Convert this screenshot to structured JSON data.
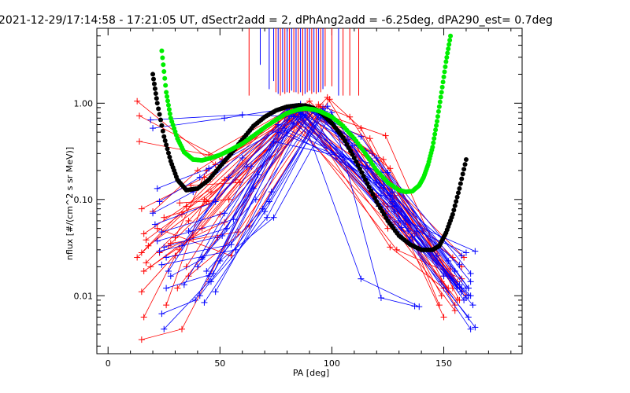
{
  "chart_data": {
    "type": "line",
    "title": "2021-12-29/17:14:58 - 17:21:05 UT, dSectr2add = 2, dPhAng2add = -6.25deg, dPA290_est=   0.7deg",
    "xlabel": "PA [deg]",
    "ylabel": "nflux [#/(cm^2 s sr MeV)]",
    "xlim": [
      -5,
      185
    ],
    "ylim": [
      0.0025,
      6.0
    ],
    "y_scale": "log",
    "x_ticks": [
      0,
      50,
      100,
      150
    ],
    "x_tick_labels": [
      "0",
      "50",
      "100",
      "150"
    ],
    "y_ticks": [
      0.01,
      0.1,
      1.0
    ],
    "y_tick_labels": [
      "0.01",
      "0.10",
      "1.00"
    ],
    "grid": false,
    "marker_lines": {
      "description_free": true,
      "colors": [
        "#ff0000",
        "#0000ff"
      ],
      "x_positions": [
        63,
        68,
        72,
        74,
        75,
        76,
        77,
        78,
        79,
        80,
        81,
        82,
        83,
        84,
        85,
        86,
        87,
        88,
        89,
        90,
        91,
        92,
        93,
        94,
        95,
        96,
        97,
        100,
        103,
        105,
        108,
        112
      ],
      "y_tops": [
        6.0,
        6.0,
        6.0,
        6.0,
        6.0,
        6.0,
        6.0,
        6.0,
        6.0,
        6.0,
        6.0,
        6.0,
        6.0,
        6.0,
        6.0,
        6.0,
        6.0,
        6.0,
        6.0,
        6.0,
        6.0,
        6.0,
        6.0,
        6.0,
        6.0,
        6.0,
        6.0,
        6.0,
        6.0,
        6.0,
        6.0,
        6.0
      ],
      "y_bottoms": [
        1.2,
        2.5,
        1.4,
        1.7,
        1.3,
        1.25,
        1.2,
        1.3,
        1.25,
        1.3,
        1.28,
        1.35,
        1.3,
        1.3,
        1.25,
        1.3,
        1.2,
        1.25,
        1.3,
        1.35,
        1.25,
        1.3,
        1.25,
        1.3,
        1.3,
        1.4,
        1.5,
        1.5,
        1.2,
        1.2,
        1.2,
        1.2
      ],
      "line_colors": [
        "#ff0000",
        "#0000ff",
        "#0000ff",
        "#0000ff",
        "#ff0000",
        "#0000ff",
        "#ff0000",
        "#0000ff",
        "#ff0000",
        "#0000ff",
        "#ff0000",
        "#0000ff",
        "#ff0000",
        "#0000ff",
        "#ff0000",
        "#0000ff",
        "#ff0000",
        "#0000ff",
        "#ff0000",
        "#0000ff",
        "#ff0000",
        "#0000ff",
        "#ff0000",
        "#0000ff",
        "#ff0000",
        "#0000ff",
        "#ff0000",
        "#ff0000",
        "#0000ff",
        "#ff0000",
        "#ff0000",
        "#ff0000"
      ]
    },
    "series": [
      {
        "color": "#ff0000",
        "x": [
          13,
          48,
          85,
          123,
          152
        ],
        "y": [
          1.05,
          0.23,
          0.88,
          0.09,
          0.012
        ]
      },
      {
        "color": "#ff0000",
        "x": [
          14,
          51,
          86,
          126,
          156
        ],
        "y": [
          0.74,
          0.26,
          0.81,
          0.065,
          0.009
        ]
      },
      {
        "color": "#ff0000",
        "x": [
          14,
          45,
          83,
          118,
          158
        ],
        "y": [
          0.4,
          0.29,
          0.92,
          0.25,
          0.011
        ]
      },
      {
        "color": "#ff0000",
        "x": [
          15,
          43,
          88,
          121,
          150
        ],
        "y": [
          0.08,
          0.17,
          0.82,
          0.18,
          0.016
        ]
      },
      {
        "color": "#ff0000",
        "x": [
          16,
          52,
          87,
          112,
          155
        ],
        "y": [
          0.044,
          0.16,
          0.86,
          0.37,
          0.008
        ]
      },
      {
        "color": "#ff0000",
        "x": [
          17,
          46,
          82,
          124,
          153
        ],
        "y": [
          0.038,
          0.12,
          0.78,
          0.075,
          0.016
        ]
      },
      {
        "color": "#ff0000",
        "x": [
          18,
          44,
          84,
          128,
          149
        ],
        "y": [
          0.033,
          0.095,
          0.8,
          0.058,
          0.014
        ]
      },
      {
        "color": "#ff0000",
        "x": [
          15,
          35,
          80,
          115,
          158
        ],
        "y": [
          0.028,
          0.085,
          0.9,
          0.22,
          0.02
        ]
      },
      {
        "color": "#ff0000",
        "x": [
          13,
          33,
          79,
          110,
          153
        ],
        "y": [
          0.025,
          0.07,
          0.72,
          0.28,
          0.015
        ]
      },
      {
        "color": "#ff0000",
        "x": [
          17,
          36,
          82,
          125,
          153
        ],
        "y": [
          0.022,
          0.06,
          0.87,
          0.085,
          0.019
        ]
      },
      {
        "color": "#ff0000",
        "x": [
          19,
          42,
          88,
          118,
          156
        ],
        "y": [
          0.02,
          0.05,
          0.94,
          0.3,
          0.014
        ]
      },
      {
        "color": "#ff0000",
        "x": [
          16,
          38,
          81,
          129,
          155
        ],
        "y": [
          0.018,
          0.04,
          0.67,
          0.046,
          0.007
        ]
      },
      {
        "color": "#ff0000",
        "x": [
          15,
          32,
          86,
          126,
          150
        ],
        "y": [
          0.011,
          0.03,
          0.87,
          0.032,
          0.012
        ]
      },
      {
        "color": "#ff0000",
        "x": [
          16,
          30,
          80,
          129,
          158
        ],
        "y": [
          0.006,
          0.026,
          0.85,
          0.03,
          0.015
        ]
      },
      {
        "color": "#ff0000",
        "x": [
          15,
          33,
          83,
          120,
          154
        ],
        "y": [
          0.0035,
          0.0045,
          0.8,
          0.11,
          0.025
        ]
      },
      {
        "color": "#ff0000",
        "x": [
          20,
          40,
          86,
          123,
          151
        ],
        "y": [
          0.075,
          0.2,
          0.95,
          0.26,
          0.018
        ]
      },
      {
        "color": "#ff0000",
        "x": [
          22,
          55,
          88,
          124,
          154
        ],
        "y": [
          0.05,
          0.026,
          0.9,
          0.46,
          0.012
        ]
      },
      {
        "color": "#ff0000",
        "x": [
          27,
          57,
          92,
          126,
          157
        ],
        "y": [
          0.033,
          0.16,
          0.86,
          0.21,
          0.009
        ]
      },
      {
        "color": "#ff0000",
        "x": [
          23,
          52,
          90,
          117,
          152
        ],
        "y": [
          0.028,
          0.058,
          0.73,
          0.43,
          0.011
        ]
      },
      {
        "color": "#ff0000",
        "x": [
          30,
          44,
          90,
          107,
          159
        ],
        "y": [
          0.04,
          0.2,
          1.05,
          0.42,
          0.025
        ]
      },
      {
        "color": "#ff0000",
        "x": [
          32,
          54,
          93,
          128,
          160
        ],
        "y": [
          0.092,
          0.1,
          0.88,
          0.11,
          0.01
        ]
      },
      {
        "color": "#ff0000",
        "x": [
          37,
          59,
          96,
          131,
          148
        ],
        "y": [
          0.14,
          0.15,
          0.75,
          0.075,
          0.008
        ]
      },
      {
        "color": "#ff0000",
        "x": [
          35,
          50,
          98,
          127,
          150
        ],
        "y": [
          0.02,
          0.07,
          1.15,
          0.085,
          0.006
        ]
      },
      {
        "color": "#ff0000",
        "x": [
          31,
          49,
          94,
          123,
          149
        ],
        "y": [
          0.012,
          0.04,
          0.97,
          0.14,
          0.01
        ]
      },
      {
        "color": "#ff0000",
        "x": [
          26,
          43,
          95,
          134,
          148
        ],
        "y": [
          0.008,
          0.1,
          0.92,
          0.055,
          0.022
        ]
      },
      {
        "color": "#ff0000",
        "x": [
          25,
          45,
          91,
          102,
          125
        ],
        "y": [
          0.065,
          0.09,
          0.88,
          0.27,
          0.05
        ]
      },
      {
        "color": "#ff0000",
        "x": [
          28,
          58,
          96,
          108,
          141
        ],
        "y": [
          0.035,
          0.046,
          0.92,
          0.72,
          0.047
        ]
      },
      {
        "color": "#ff0000",
        "x": [
          36,
          63,
          99,
          113,
          137
        ],
        "y": [
          0.016,
          0.053,
          1.1,
          0.55,
          0.044
        ]
      },
      {
        "color": "#0000ff",
        "x": [
          19,
          60,
          86,
          121,
          156
        ],
        "y": [
          0.67,
          0.76,
          0.72,
          0.085,
          0.012
        ]
      },
      {
        "color": "#0000ff",
        "x": [
          20,
          52,
          84,
          130,
          161
        ],
        "y": [
          0.55,
          0.7,
          0.91,
          0.06,
          0.01
        ]
      },
      {
        "color": "#0000ff",
        "x": [
          22,
          45,
          88,
          115,
          162
        ],
        "y": [
          0.13,
          0.21,
          0.75,
          0.32,
          0.014
        ]
      },
      {
        "color": "#0000ff",
        "x": [
          23,
          41,
          80,
          120,
          158
        ],
        "y": [
          0.095,
          0.17,
          0.87,
          0.15,
          0.026
        ]
      },
      {
        "color": "#0000ff",
        "x": [
          20,
          38,
          82,
          122,
          157
        ],
        "y": [
          0.072,
          0.12,
          0.74,
          0.11,
          0.021
        ]
      },
      {
        "color": "#0000ff",
        "x": [
          21,
          48,
          76,
          116,
          158
        ],
        "y": [
          0.055,
          0.095,
          0.6,
          0.21,
          0.011
        ]
      },
      {
        "color": "#0000ff",
        "x": [
          24,
          52,
          87,
          127,
          159
        ],
        "y": [
          0.046,
          0.072,
          0.77,
          0.095,
          0.009
        ]
      },
      {
        "color": "#0000ff",
        "x": [
          22,
          56,
          84,
          128,
          160
        ],
        "y": [
          0.037,
          0.062,
          0.93,
          0.085,
          0.0095
        ]
      },
      {
        "color": "#0000ff",
        "x": [
          25,
          53,
          81,
          124,
          161
        ],
        "y": [
          0.032,
          0.05,
          0.84,
          0.07,
          0.006
        ]
      },
      {
        "color": "#0000ff",
        "x": [
          23,
          51,
          83,
          131,
          162
        ],
        "y": [
          0.029,
          0.042,
          0.89,
          0.051,
          0.0045
        ]
      },
      {
        "color": "#0000ff",
        "x": [
          26,
          55,
          86,
          135,
          164
        ],
        "y": [
          0.025,
          0.034,
          0.98,
          0.038,
          0.0047
        ]
      },
      {
        "color": "#0000ff",
        "x": [
          24,
          57,
          90,
          134,
          163
        ],
        "y": [
          0.021,
          0.03,
          0.9,
          0.047,
          0.008
        ]
      },
      {
        "color": "#0000ff",
        "x": [
          28,
          42,
          76,
          122,
          161
        ],
        "y": [
          0.016,
          0.024,
          0.5,
          0.19,
          0.012
        ]
      },
      {
        "color": "#0000ff",
        "x": [
          26,
          47,
          74,
          117,
          155
        ],
        "y": [
          0.012,
          0.017,
          0.4,
          0.24,
          0.018
        ]
      },
      {
        "color": "#0000ff",
        "x": [
          24,
          39,
          79,
          123,
          157
        ],
        "y": [
          0.0065,
          0.009,
          0.52,
          0.14,
          0.013
        ]
      },
      {
        "color": "#0000ff",
        "x": [
          25,
          45,
          83,
          126,
          150
        ],
        "y": [
          0.0045,
          0.014,
          0.62,
          0.11,
          0.016
        ]
      },
      {
        "color": "#0000ff",
        "x": [
          27,
          54,
          86,
          128,
          158
        ],
        "y": [
          0.018,
          0.17,
          0.8,
          0.075,
          0.012
        ]
      },
      {
        "color": "#0000ff",
        "x": [
          33,
          60,
          88,
          109,
          147
        ],
        "y": [
          0.033,
          0.27,
          0.93,
          0.36,
          0.026
        ]
      },
      {
        "color": "#0000ff",
        "x": [
          36,
          62,
          89,
          113,
          152
        ],
        "y": [
          0.047,
          0.22,
          0.87,
          0.45,
          0.023
        ]
      },
      {
        "color": "#0000ff",
        "x": [
          34,
          64,
          91,
          111,
          156
        ],
        "y": [
          0.013,
          0.22,
          0.85,
          0.39,
          0.012
        ]
      },
      {
        "color": "#0000ff",
        "x": [
          40,
          65,
          92,
          120,
          162
        ],
        "y": [
          0.02,
          0.13,
          0.84,
          0.27,
          0.017
        ]
      },
      {
        "color": "#0000ff",
        "x": [
          42,
          66,
          93,
          125,
          161
        ],
        "y": [
          0.025,
          0.1,
          0.79,
          0.19,
          0.012
        ]
      },
      {
        "color": "#0000ff",
        "x": [
          44,
          69,
          94,
          127,
          160
        ],
        "y": [
          0.018,
          0.08,
          0.76,
          0.12,
          0.012
        ]
      },
      {
        "color": "#0000ff",
        "x": [
          46,
          71,
          95,
          133,
          164
        ],
        "y": [
          0.014,
          0.065,
          0.74,
          0.06,
          0.029
        ]
      },
      {
        "color": "#0000ff",
        "x": [
          41,
          72,
          96,
          138,
          160
        ],
        "y": [
          0.01,
          0.095,
          0.88,
          0.047,
          0.028
        ]
      },
      {
        "color": "#0000ff",
        "x": [
          43,
          70,
          97,
          136,
          158
        ],
        "y": [
          0.0085,
          0.075,
          0.82,
          0.041,
          0.011
        ]
      },
      {
        "color": "#0000ff",
        "x": [
          48,
          73,
          98,
          140,
          162
        ],
        "y": [
          0.011,
          0.12,
          0.93,
          0.03,
          0.01
        ]
      },
      {
        "color": "#0000ff",
        "x": [
          45,
          67,
          86,
          113,
          139
        ],
        "y": [
          0.016,
          0.18,
          0.8,
          0.015,
          0.0077
        ]
      },
      {
        "color": "#0000ff",
        "x": [
          50,
          74,
          100,
          122,
          137
        ],
        "y": [
          0.023,
          0.065,
          0.8,
          0.0095,
          0.0078
        ]
      }
    ],
    "fit_curves": [
      {
        "color": "#000000",
        "x": [
          20,
          22,
          25,
          28,
          31,
          35,
          40,
          45,
          50,
          55,
          60,
          65,
          70,
          75,
          80,
          85,
          88,
          90,
          92,
          95,
          100,
          105,
          110,
          115,
          120,
          125,
          130,
          135,
          140,
          145,
          148,
          151,
          154,
          157,
          160
        ],
        "y": [
          2.0,
          1.0,
          0.45,
          0.25,
          0.16,
          0.125,
          0.13,
          0.16,
          0.22,
          0.3,
          0.42,
          0.58,
          0.72,
          0.84,
          0.92,
          0.95,
          0.94,
          0.92,
          0.88,
          0.8,
          0.62,
          0.44,
          0.27,
          0.16,
          0.095,
          0.06,
          0.042,
          0.034,
          0.03,
          0.03,
          0.033,
          0.045,
          0.07,
          0.13,
          0.26
        ]
      },
      {
        "color": "#00ee00",
        "x": [
          24,
          26,
          28,
          31,
          34,
          38,
          42,
          46,
          50,
          55,
          60,
          65,
          70,
          75,
          80,
          85,
          88,
          90,
          92,
          95,
          100,
          105,
          110,
          115,
          120,
          125,
          130,
          133,
          136,
          139,
          141,
          143,
          145,
          147,
          149,
          151,
          153
        ],
        "y": [
          3.5,
          1.3,
          0.7,
          0.43,
          0.31,
          0.26,
          0.255,
          0.27,
          0.29,
          0.33,
          0.38,
          0.46,
          0.56,
          0.67,
          0.79,
          0.86,
          0.88,
          0.87,
          0.86,
          0.82,
          0.72,
          0.58,
          0.43,
          0.3,
          0.2,
          0.15,
          0.125,
          0.12,
          0.122,
          0.14,
          0.17,
          0.23,
          0.35,
          0.65,
          1.3,
          2.7,
          5.0
        ]
      }
    ]
  }
}
